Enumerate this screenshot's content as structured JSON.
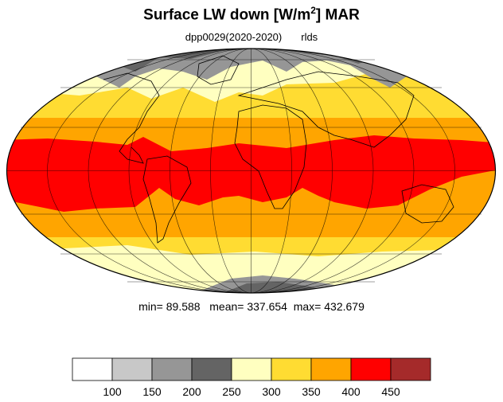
{
  "title": {
    "main": "Surface LW down [W/m",
    "superscript": "2",
    "suffix": "]  MAR"
  },
  "subtitle": {
    "experiment": "dpp0029(2020-2020)",
    "variable": "rlds"
  },
  "stats": {
    "min_label": "min=",
    "min": "89.588",
    "mean_label": "mean=",
    "mean": "337.654",
    "max_label": "max=",
    "max": "432.679"
  },
  "colorbar": {
    "colors": [
      "#ffffff",
      "#c8c8c8",
      "#969696",
      "#646464",
      "#ffffc0",
      "#ffdc32",
      "#ffa500",
      "#ff0000",
      "#a52a2a"
    ],
    "ticks": [
      "100",
      "150",
      "200",
      "250",
      "300",
      "350",
      "400",
      "450"
    ]
  },
  "map": {
    "projection": "mollweide",
    "band_colors": {
      "polar": "#646464",
      "subpolar": "#969696",
      "cold": "#ffffc0",
      "mid": "#ffdc32",
      "warm": "#ffa500",
      "tropical": "#ff0000"
    }
  }
}
